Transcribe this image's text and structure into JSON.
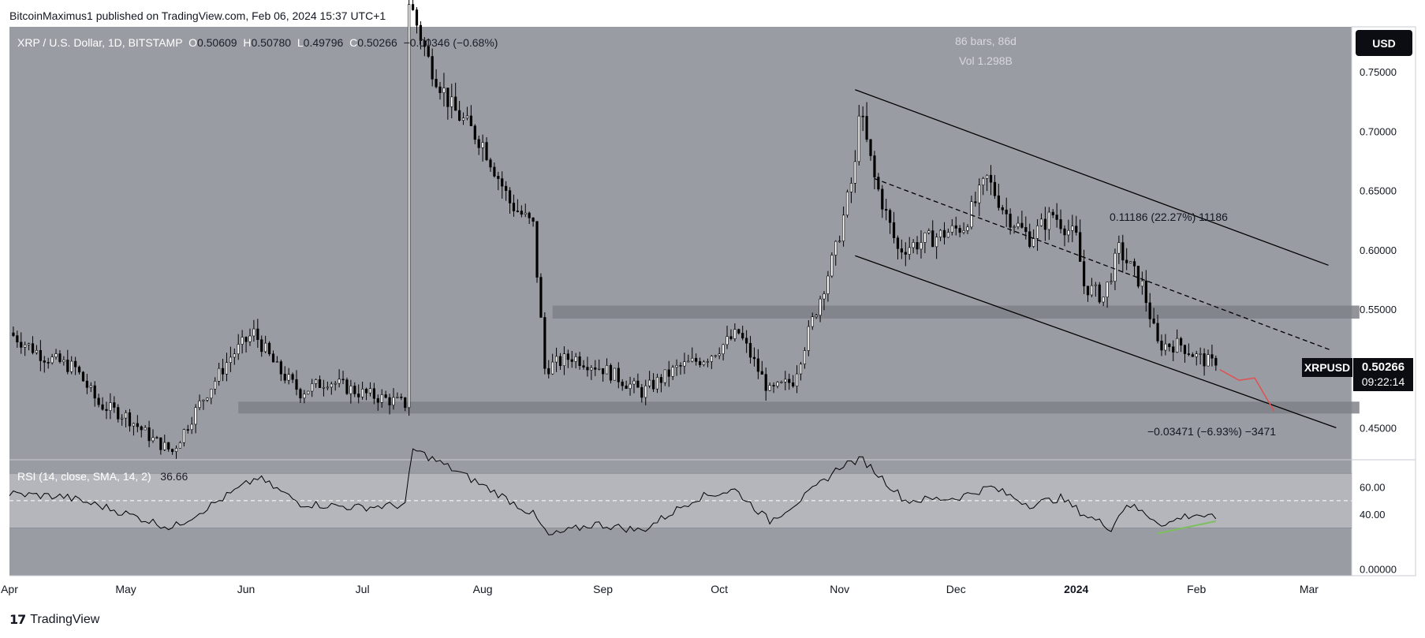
{
  "header": {
    "publish_line": "BitcoinMaximus1 published on TradingView.com, Feb 06, 2024 15:37 UTC+1"
  },
  "footer": {
    "brand": "TradingView",
    "logo_mark": "17"
  },
  "toolbar": {
    "currency_button": "USD"
  },
  "legend": {
    "symbol": "XRP / U.S. Dollar, 1D, BITSTAMP",
    "open_key": "O",
    "open": "0.50609",
    "high_key": "H",
    "high": "0.50780",
    "low_key": "L",
    "low": "0.49796",
    "close_key": "C",
    "close": "0.50266",
    "change": "−0.00346 (−0.68%)"
  },
  "range_info": {
    "bars": "86 bars, 86d",
    "vol": "Vol 1.298B"
  },
  "price_label": {
    "ticker": "XRPUSD",
    "price": "0.50266",
    "countdown": "09:22:14"
  },
  "rsi_legend": {
    "label": "RSI (14, close, SMA, 14, 2)",
    "value": "36.66"
  },
  "annotations": {
    "upper_measure": "0.11186 (22.27%) 11186",
    "lower_measure": "−0.03471 (−6.93%) −3471"
  },
  "colors": {
    "background": "#ffffff",
    "chart_bg": "#9a9ca4",
    "rsi_band": "#b4b6bc",
    "zone": "#7f8188",
    "candle": "#000000",
    "projection": "#e0514f",
    "rsi_divergence": "#7dbf5c"
  },
  "chart_data": [
    {
      "type": "candlestick",
      "title": "XRP / U.S. Dollar, 1D, BITSTAMP",
      "x_ticks": [
        "Apr",
        "May",
        "Jun",
        "Jul",
        "Aug",
        "Sep",
        "Oct",
        "Nov",
        "Dec",
        "2024",
        "Feb",
        "Mar"
      ],
      "y_ticks": [
        "0.75000",
        "0.70000",
        "0.65000",
        "0.60000",
        "0.55000",
        "0.45000"
      ],
      "ylim": [
        0.423,
        0.788
      ],
      "x_start": "2023-04-01",
      "x_end": "2024-03-12",
      "closes_knots": [
        [
          "2023-04-01",
          0.53
        ],
        [
          "2023-04-10",
          0.51
        ],
        [
          "2023-04-18",
          0.5
        ],
        [
          "2023-04-24",
          0.47
        ],
        [
          "2023-05-01",
          0.46
        ],
        [
          "2023-05-08",
          0.44
        ],
        [
          "2023-05-13",
          0.43
        ],
        [
          "2023-05-20",
          0.47
        ],
        [
          "2023-05-28",
          0.51
        ],
        [
          "2023-06-03",
          0.53
        ],
        [
          "2023-06-09",
          0.5
        ],
        [
          "2023-06-15",
          0.48
        ],
        [
          "2023-06-22",
          0.49
        ],
        [
          "2023-06-30",
          0.48
        ],
        [
          "2023-07-12",
          0.47
        ],
        [
          "2023-07-13",
          0.81
        ],
        [
          "2023-07-18",
          0.76
        ],
        [
          "2023-07-24",
          0.72
        ],
        [
          "2023-08-01",
          0.69
        ],
        [
          "2023-08-08",
          0.64
        ],
        [
          "2023-08-14",
          0.62
        ],
        [
          "2023-08-17",
          0.5
        ],
        [
          "2023-08-24",
          0.51
        ],
        [
          "2023-09-01",
          0.5
        ],
        [
          "2023-09-11",
          0.48
        ],
        [
          "2023-09-20",
          0.5
        ],
        [
          "2023-09-28",
          0.51
        ],
        [
          "2023-10-06",
          0.53
        ],
        [
          "2023-10-14",
          0.48
        ],
        [
          "2023-10-20",
          0.49
        ],
        [
          "2023-10-24",
          0.53
        ],
        [
          "2023-10-31",
          0.6
        ],
        [
          "2023-11-05",
          0.67
        ],
        [
          "2023-11-06",
          0.72
        ],
        [
          "2023-11-10",
          0.66
        ],
        [
          "2023-11-16",
          0.6
        ],
        [
          "2023-11-25",
          0.61
        ],
        [
          "2023-12-03",
          0.62
        ],
        [
          "2023-12-09",
          0.66
        ],
        [
          "2023-12-14",
          0.63
        ],
        [
          "2023-12-20",
          0.61
        ],
        [
          "2023-12-26",
          0.63
        ],
        [
          "2024-01-01",
          0.61
        ],
        [
          "2024-01-03",
          0.57
        ],
        [
          "2024-01-08",
          0.56
        ],
        [
          "2024-01-12",
          0.6
        ],
        [
          "2024-01-18",
          0.57
        ],
        [
          "2024-01-22",
          0.52
        ],
        [
          "2024-01-28",
          0.52
        ],
        [
          "2024-02-01",
          0.51
        ],
        [
          "2024-02-06",
          0.50266
        ]
      ],
      "lines": [
        {
          "name": "upper channel",
          "points": [
            [
              "2023-11-05",
              0.735
            ],
            [
              "2024-03-06",
              0.587
            ]
          ]
        },
        {
          "name": "mid channel",
          "style": "dashed",
          "points": [
            [
              "2023-11-10",
              0.66
            ],
            [
              "2024-03-07",
              0.515
            ]
          ]
        },
        {
          "name": "lower channel",
          "points": [
            [
              "2023-11-05",
              0.595
            ],
            [
              "2024-03-08",
              0.45
            ]
          ]
        }
      ],
      "zones": [
        {
          "name": "resistance",
          "x_from": "2023-08-19",
          "x_to": "2024-03-14",
          "y": [
            0.542,
            0.553
          ]
        },
        {
          "name": "support",
          "x_from": "2023-05-30",
          "x_to": "2024-03-14",
          "y": [
            0.462,
            0.472
          ]
        }
      ],
      "projection": [
        [
          "2024-02-07",
          0.499
        ],
        [
          "2024-02-12",
          0.49
        ],
        [
          "2024-02-16",
          0.492
        ],
        [
          "2024-02-21",
          0.464
        ]
      ],
      "last_price": 0.50266
    },
    {
      "type": "line",
      "title": "RSI (14, close, SMA, 14, 2)",
      "y_ticks": [
        "60.00",
        "40.00",
        "0.00000"
      ],
      "ylim": [
        -5,
        80
      ],
      "bands": [
        30,
        70
      ],
      "midline": 50,
      "knots": [
        [
          "2023-04-01",
          55
        ],
        [
          "2023-04-15",
          53
        ],
        [
          "2023-04-26",
          45
        ],
        [
          "2023-05-05",
          37
        ],
        [
          "2023-05-13",
          30
        ],
        [
          "2023-05-25",
          50
        ],
        [
          "2023-06-04",
          67
        ],
        [
          "2023-06-15",
          48
        ],
        [
          "2023-06-30",
          45
        ],
        [
          "2023-07-12",
          47
        ],
        [
          "2023-07-14",
          88
        ],
        [
          "2023-07-25",
          72
        ],
        [
          "2023-08-05",
          55
        ],
        [
          "2023-08-14",
          40
        ],
        [
          "2023-08-18",
          24
        ],
        [
          "2023-08-30",
          33
        ],
        [
          "2023-09-11",
          28
        ],
        [
          "2023-09-25",
          52
        ],
        [
          "2023-10-05",
          58
        ],
        [
          "2023-10-14",
          35
        ],
        [
          "2023-10-24",
          55
        ],
        [
          "2023-11-02",
          77
        ],
        [
          "2023-11-07",
          80
        ],
        [
          "2023-11-18",
          50
        ],
        [
          "2023-12-01",
          52
        ],
        [
          "2023-12-10",
          60
        ],
        [
          "2023-12-20",
          47
        ],
        [
          "2023-12-28",
          52
        ],
        [
          "2024-01-03",
          40
        ],
        [
          "2024-01-10",
          30
        ],
        [
          "2024-01-14",
          48
        ],
        [
          "2024-01-24",
          32
        ],
        [
          "2024-01-28",
          38
        ],
        [
          "2024-02-01",
          40
        ],
        [
          "2024-02-06",
          36.66
        ]
      ],
      "divergence": [
        [
          "2024-01-22",
          26
        ],
        [
          "2024-02-06",
          35
        ]
      ]
    }
  ]
}
